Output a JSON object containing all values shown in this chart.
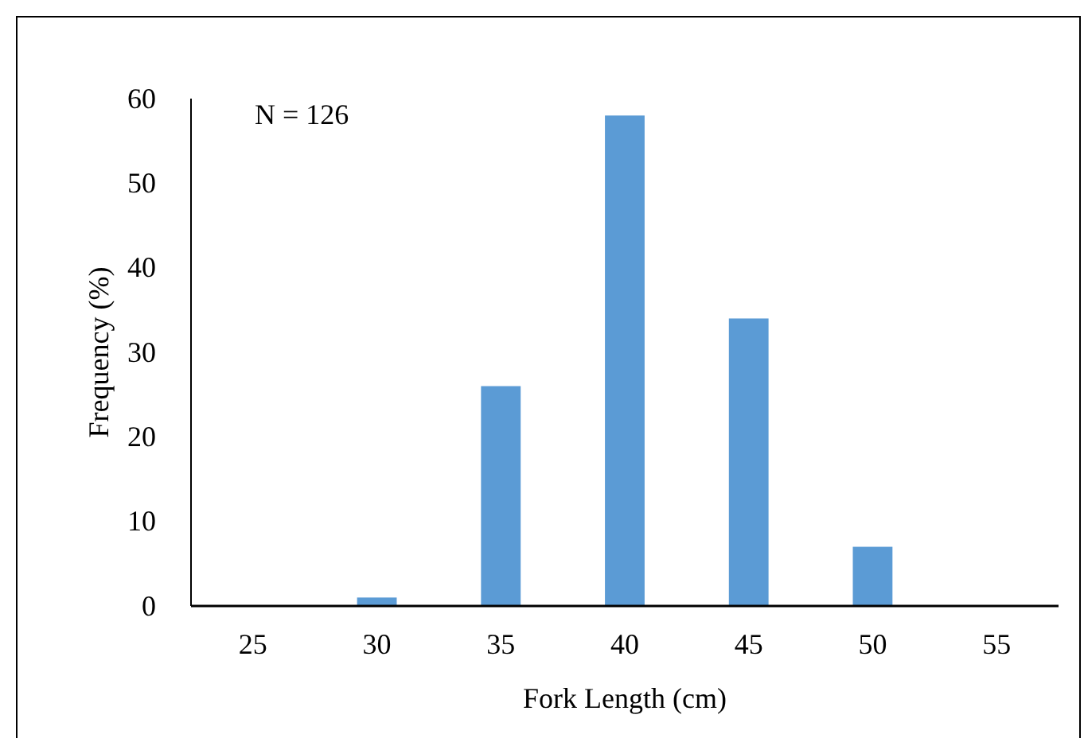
{
  "chart_data": {
    "type": "bar",
    "xlabel": "Fork Length (cm)",
    "ylabel": "Frequency (%)",
    "categories": [
      "25",
      "30",
      "35",
      "40",
      "45",
      "50",
      "55"
    ],
    "values": [
      0,
      1,
      26,
      58,
      34,
      7,
      0
    ],
    "color": "#5b9bd5",
    "ylim": [
      0,
      60
    ],
    "yticks": [
      0,
      10,
      20,
      30,
      40,
      50,
      60
    ],
    "annotations": [
      "N = 126"
    ]
  }
}
